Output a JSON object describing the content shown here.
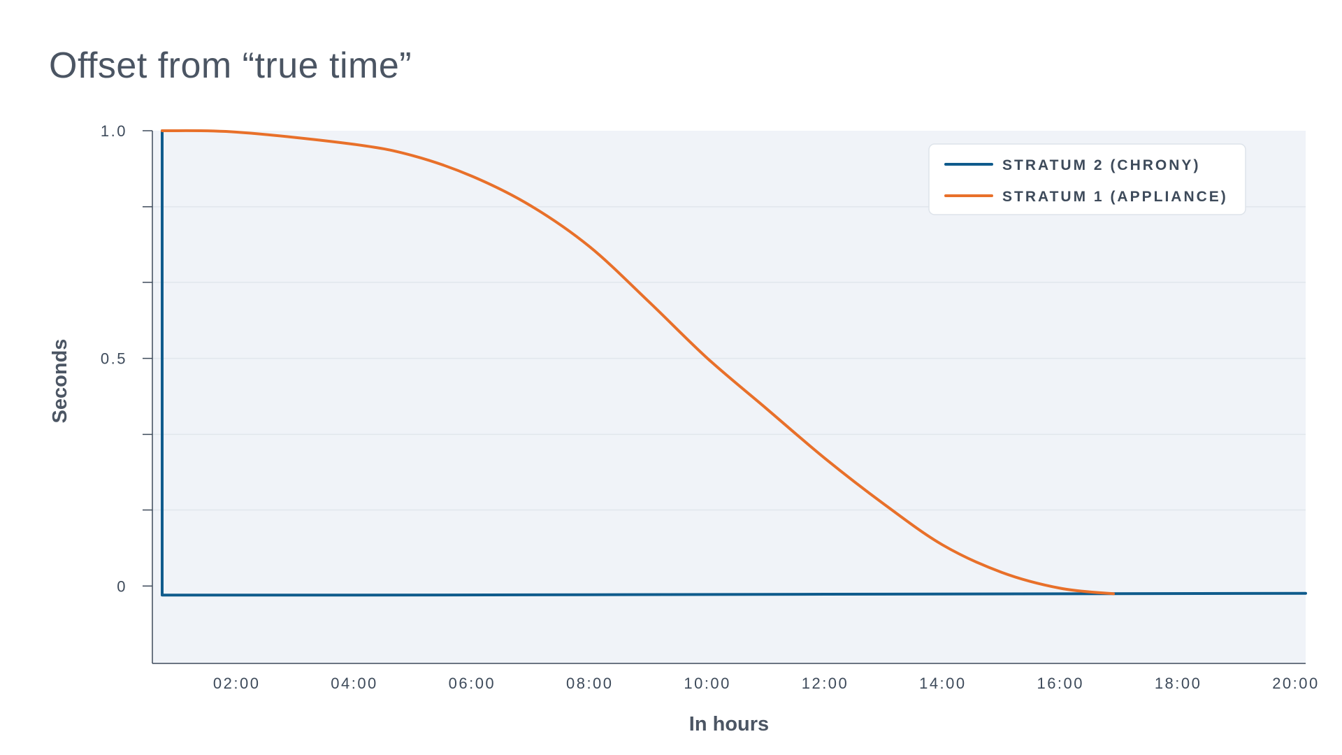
{
  "title": "Offset from “true time”",
  "chart_data": {
    "type": "line",
    "title": "Offset from “true time”",
    "xlabel": "In hours",
    "ylabel": "Seconds",
    "x_ticks": [
      "02:00",
      "04:00",
      "06:00",
      "08:00",
      "10:00",
      "12:00",
      "14:00",
      "16:00",
      "18:00",
      "20:00"
    ],
    "y_ticks": [
      "1.0",
      "0.5",
      "0"
    ],
    "xlim": [
      "00:34",
      "20:10"
    ],
    "ylim": [
      -0.17,
      1.0
    ],
    "grid": true,
    "legend_position": "top-right",
    "series": [
      {
        "name": "STRATUM 2 (CHRONY)",
        "color": "#0f5b8c",
        "points": [
          {
            "x": "00:44",
            "y": 1.0
          },
          {
            "x": "00:44",
            "y": -0.02
          },
          {
            "x": "04:00",
            "y": -0.02
          },
          {
            "x": "08:00",
            "y": -0.019
          },
          {
            "x": "12:00",
            "y": -0.018
          },
          {
            "x": "16:00",
            "y": -0.017
          },
          {
            "x": "20:10",
            "y": -0.016
          }
        ]
      },
      {
        "name": "STRATUM 1 (APPLIANCE)",
        "color": "#e8702a",
        "points": [
          {
            "x": "00:44",
            "y": 1.0
          },
          {
            "x": "02:00",
            "y": 0.997
          },
          {
            "x": "04:00",
            "y": 0.97
          },
          {
            "x": "05:00",
            "y": 0.945
          },
          {
            "x": "06:00",
            "y": 0.9
          },
          {
            "x": "07:00",
            "y": 0.835
          },
          {
            "x": "08:00",
            "y": 0.745
          },
          {
            "x": "09:00",
            "y": 0.625
          },
          {
            "x": "10:00",
            "y": 0.5
          },
          {
            "x": "11:00",
            "y": 0.39
          },
          {
            "x": "12:00",
            "y": 0.28
          },
          {
            "x": "13:00",
            "y": 0.18
          },
          {
            "x": "14:00",
            "y": 0.09
          },
          {
            "x": "15:00",
            "y": 0.03
          },
          {
            "x": "16:00",
            "y": -0.005
          },
          {
            "x": "16:54",
            "y": -0.017
          }
        ]
      }
    ]
  }
}
